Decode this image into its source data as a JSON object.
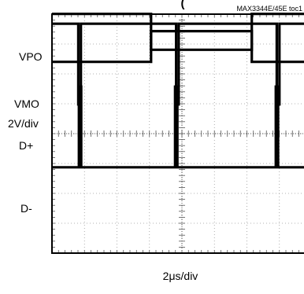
{
  "chart_data": {
    "type": "line",
    "title": "(",
    "tag": "MAX3344E/45E toc1",
    "xlabel": "2μs/div",
    "ylabel": "2V/div",
    "divisions": {
      "x": 8,
      "y": 8
    },
    "xlim": [
      0,
      16
    ],
    "x_unit": "μs",
    "grid": true,
    "series": [
      {
        "name": "VPO",
        "low_level_div": 0.65,
        "high_level_div": 1.85,
        "points": [
          [
            0,
            1.85
          ],
          [
            6.1,
            1.85
          ],
          [
            6.1,
            0.65
          ],
          [
            12.3,
            0.65
          ],
          [
            12.3,
            1.85
          ],
          [
            16,
            1.85
          ]
        ]
      },
      {
        "name": "VMO",
        "low_level_div": 1.77,
        "high_level_div": 2.8,
        "points": [
          [
            0,
            1.77
          ],
          [
            6.1,
            1.77
          ],
          [
            6.1,
            2.8
          ],
          [
            12.3,
            2.8
          ],
          [
            12.3,
            1.77
          ],
          [
            16,
            1.77
          ]
        ]
      },
      {
        "name": "D+",
        "low_level_div": 1.4,
        "high_level_div": 4.1,
        "points": [
          [
            0,
            4.1
          ],
          [
            1.62,
            4.1
          ],
          [
            1.62,
            1.4
          ],
          [
            1.78,
            1.4
          ],
          [
            1.78,
            4.1
          ],
          [
            7.64,
            4.1
          ],
          [
            7.64,
            1.4
          ],
          [
            7.8,
            1.4
          ],
          [
            7.8,
            4.1
          ],
          [
            13.84,
            4.1
          ],
          [
            13.84,
            1.4
          ],
          [
            14.0,
            1.4
          ],
          [
            14.0,
            4.1
          ],
          [
            16,
            4.1
          ]
        ]
      },
      {
        "name": "D-",
        "low_level_div": 1.4,
        "high_level_div": 4.1,
        "points": [
          [
            0,
            1.4
          ],
          [
            1.66,
            1.4
          ],
          [
            1.66,
            4.1
          ],
          [
            1.8,
            4.1
          ],
          [
            1.8,
            1.4
          ],
          [
            7.58,
            1.4
          ],
          [
            7.58,
            4.1
          ],
          [
            7.72,
            4.1
          ],
          [
            7.72,
            1.4
          ],
          [
            13.78,
            1.4
          ],
          [
            13.78,
            4.1
          ],
          [
            13.92,
            4.1
          ],
          [
            13.92,
            1.4
          ],
          [
            16,
            1.4
          ]
        ]
      }
    ]
  },
  "ground_labels": [
    "VPO",
    "VMO",
    "D+",
    "D-"
  ]
}
